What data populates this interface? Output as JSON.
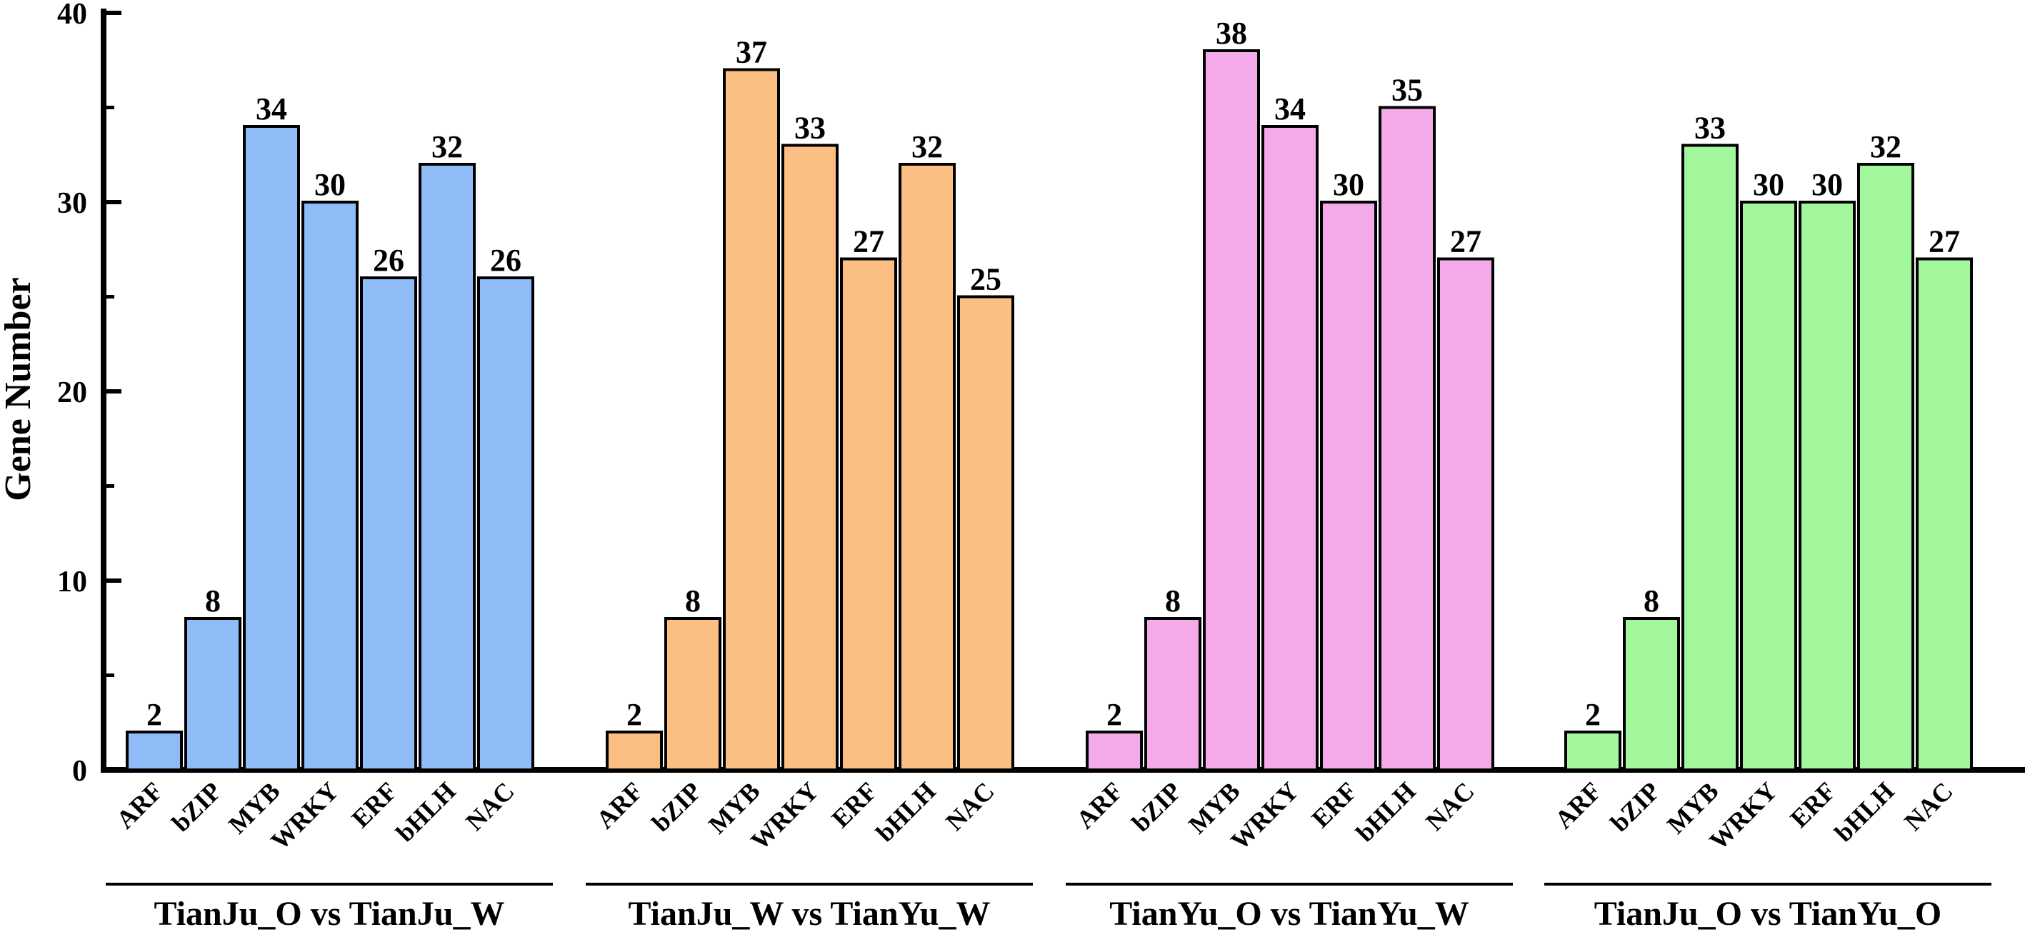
{
  "chart_data": {
    "type": "bar",
    "ylabel": "Gene Number",
    "ylim": [
      0,
      40
    ],
    "yticks": [
      0,
      10,
      20,
      30,
      40
    ],
    "categories": [
      "ARF",
      "bZIP",
      "MYB",
      "WRKY",
      "ERF",
      "bHLH",
      "NAC"
    ],
    "series": [
      {
        "name": "TianJu_O vs TianJu_W",
        "color": "#8fbcf7",
        "values": [
          2,
          8,
          34,
          30,
          26,
          32,
          26
        ]
      },
      {
        "name": "TianJu_W vs TianYu_W",
        "color": "#fbbf84",
        "values": [
          2,
          8,
          37,
          33,
          27,
          32,
          25
        ]
      },
      {
        "name": "TianYu_O vs TianYu_W",
        "color": "#f4aae8",
        "values": [
          2,
          8,
          38,
          34,
          30,
          35,
          27
        ]
      },
      {
        "name": "TianJu_O vs TianYu_O",
        "color": "#a2f79d",
        "values": [
          2,
          8,
          33,
          30,
          30,
          32,
          27
        ]
      }
    ]
  }
}
